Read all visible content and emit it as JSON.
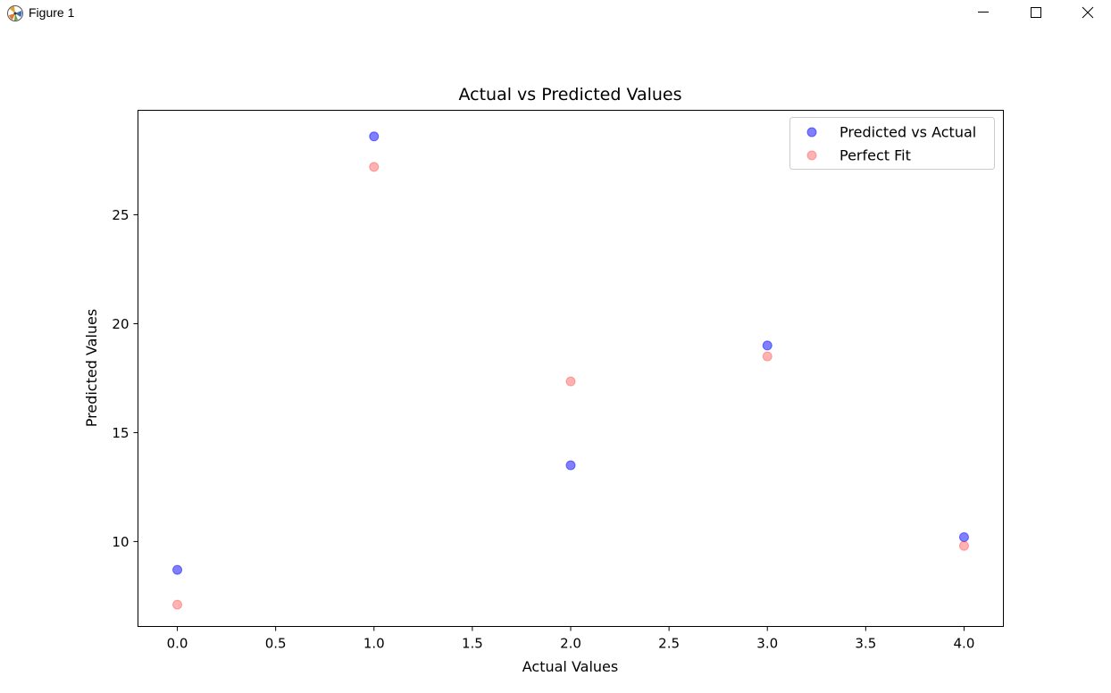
{
  "window": {
    "title": "Figure 1",
    "app_icon": "matplotlib-icon",
    "controls": {
      "minimize_icon": "minimize-icon",
      "maximize_icon": "maximize-icon",
      "close_icon": "close-icon"
    }
  },
  "chart_data": {
    "type": "scatter",
    "title": "Actual vs Predicted Values",
    "xlabel": "Actual Values",
    "ylabel": "Predicted Values",
    "xlim": [
      -0.2,
      4.2
    ],
    "ylim": [
      6.1,
      29.8
    ],
    "xticks": [
      0.0,
      0.5,
      1.0,
      1.5,
      2.0,
      2.5,
      3.0,
      3.5,
      4.0
    ],
    "xtick_labels": [
      "0.0",
      "0.5",
      "1.0",
      "1.5",
      "2.0",
      "2.5",
      "3.0",
      "3.5",
      "4.0"
    ],
    "yticks": [
      10,
      15,
      20,
      25
    ],
    "ytick_labels": [
      "10",
      "15",
      "20",
      "25"
    ],
    "grid": false,
    "legend_position": "top-right",
    "series": [
      {
        "name": "Predicted vs Actual",
        "color": "#0000ff",
        "alpha": 0.5,
        "x": [
          0,
          1,
          2,
          3,
          4
        ],
        "y": [
          8.7,
          28.6,
          13.5,
          19.0,
          10.2
        ]
      },
      {
        "name": "Perfect Fit",
        "color": "#ff0000",
        "alpha": 0.3,
        "x": [
          0,
          1,
          2,
          3,
          4
        ],
        "y": [
          7.1,
          27.2,
          17.35,
          18.5,
          9.8
        ]
      }
    ]
  }
}
